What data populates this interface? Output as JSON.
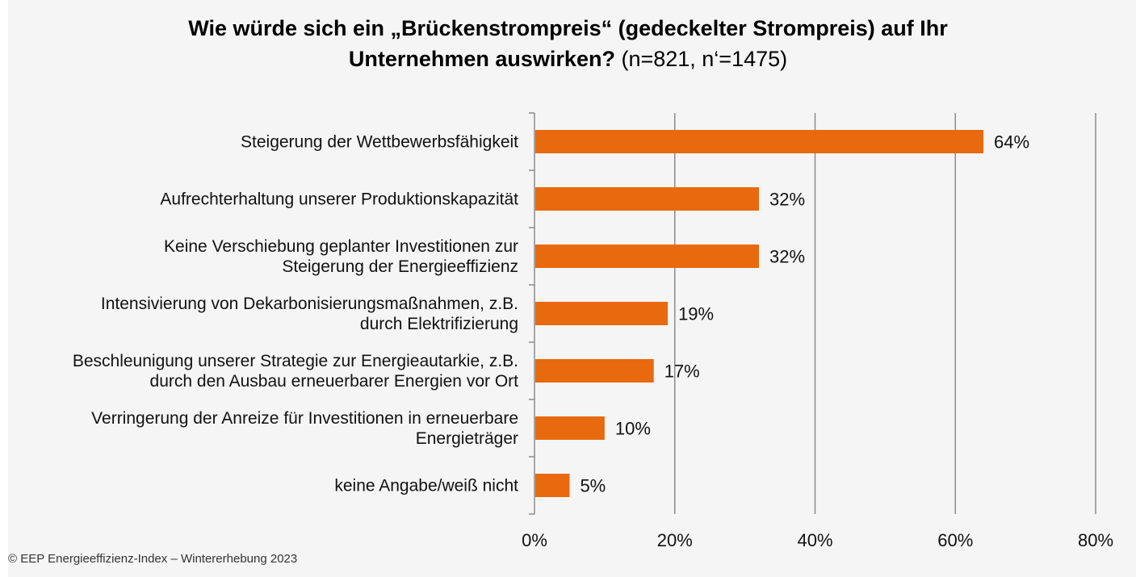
{
  "title": {
    "line1": "Wie würde sich ein „Brückenstrompreis“ (gedeckelter Strompreis) auf Ihr",
    "line2_bold": "Unternehmen auswirken?",
    "line2_normal": " (n=821, n‘=1475)"
  },
  "footer": "© EEP Energieeffizienz-Index – Wintererhebung 2023",
  "colors": {
    "bar": "#e8690e",
    "grid": "#8c8c8c",
    "axis": "#8c8c8c",
    "panel": "#f5f5f5"
  },
  "chart_data": {
    "type": "bar",
    "orientation": "horizontal",
    "categories": [
      [
        "Steigerung der Wettbewerbsfähigkeit"
      ],
      [
        "Aufrechterhaltung unserer Produktionskapazität"
      ],
      [
        "Keine Verschiebung geplanter Investitionen zur",
        "Steigerung der Energieeffizienz"
      ],
      [
        "Intensivierung von Dekarbonisierungsmaßnahmen, z.B.",
        "durch Elektrifizierung"
      ],
      [
        "Beschleunigung unserer Strategie zur Energieautarkie, z.B.",
        "durch den Ausbau erneuerbarer Energien vor Ort"
      ],
      [
        "Verringerung der Anreize für Investitionen in erneuerbare",
        "Energieträger"
      ],
      [
        "keine Angabe/weiß nicht"
      ]
    ],
    "values": [
      64,
      32,
      32,
      19,
      17,
      10,
      5
    ],
    "value_labels": [
      "64%",
      "32%",
      "32%",
      "19%",
      "17%",
      "10%",
      "5%"
    ],
    "xlim": [
      0,
      80
    ],
    "xticks": [
      0,
      20,
      40,
      60,
      80
    ],
    "xtick_labels": [
      "0%",
      "20%",
      "40%",
      "60%",
      "80%"
    ],
    "grid": true,
    "legend": "none"
  }
}
